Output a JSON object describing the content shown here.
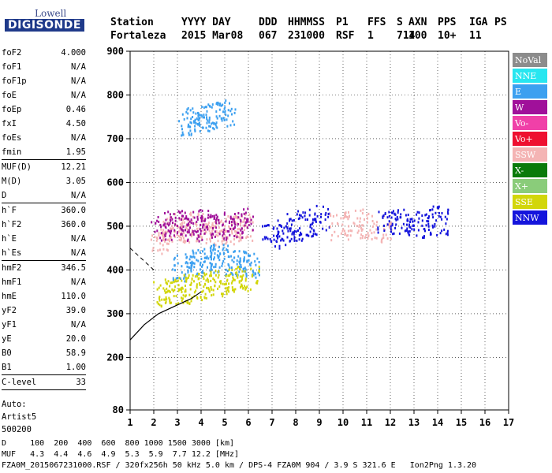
{
  "logo": {
    "line1": "Lowell",
    "line2": "DIGISONDE"
  },
  "header": {
    "labels": [
      "Station",
      "YYYY DAY",
      "DDD",
      "HHMMSS",
      "P1",
      "FFS",
      "S",
      "AXN",
      "PPS",
      "IGA",
      "PS"
    ],
    "values": [
      "Fortaleza",
      "2015 Mar08",
      "067",
      "231000",
      "RSF",
      "1",
      "714",
      "100",
      "10+",
      "11"
    ]
  },
  "parameters": [
    {
      "name": "foF2",
      "value": "4.000"
    },
    {
      "name": "foF1",
      "value": "N/A"
    },
    {
      "name": "foF1p",
      "value": "N/A"
    },
    {
      "name": "foE",
      "value": "N/A"
    },
    {
      "name": "foEp",
      "value": "0.46"
    },
    {
      "name": "fxI",
      "value": "4.50"
    },
    {
      "name": "foEs",
      "value": "N/A"
    },
    {
      "name": "fmin",
      "value": "1.95"
    },
    {
      "sep": true
    },
    {
      "name": "MUF(D)",
      "value": "12.21"
    },
    {
      "name": "M(D)",
      "value": "3.05"
    },
    {
      "name": "D",
      "value": "N/A"
    },
    {
      "sep": true
    },
    {
      "name": "h`F",
      "value": "360.0"
    },
    {
      "name": "h`F2",
      "value": "360.0"
    },
    {
      "name": "h`E",
      "value": "N/A"
    },
    {
      "name": "h`Es",
      "value": "N/A"
    },
    {
      "sep": true
    },
    {
      "name": "hmF2",
      "value": "346.5"
    },
    {
      "name": "hmF1",
      "value": "N/A"
    },
    {
      "name": "hmE",
      "value": "110.0"
    },
    {
      "name": "yF2",
      "value": "39.0"
    },
    {
      "name": "yF1",
      "value": "N/A"
    },
    {
      "name": "yE",
      "value": "20.0"
    },
    {
      "name": "B0",
      "value": "58.9"
    },
    {
      "name": "B1",
      "value": "1.00"
    },
    {
      "sep": true
    },
    {
      "name": "C-level",
      "value": "33"
    },
    {
      "sep": true
    }
  ],
  "autoscaling": [
    "Auto:",
    "Artist5",
    "500200"
  ],
  "legend": [
    {
      "label": "NoVal",
      "color": "#8c8c8c"
    },
    {
      "label": "NNE",
      "color": "#28e6f0"
    },
    {
      "label": "E",
      "color": "#3ca0f0"
    },
    {
      "label": "W",
      "color": "#a0109a"
    },
    {
      "label": "Vo-",
      "color": "#f040a8"
    },
    {
      "label": "Vo+",
      "color": "#ee1030"
    },
    {
      "label": "SSW",
      "color": "#f4b4b4"
    },
    {
      "label": "X-",
      "color": "#0a7a0a"
    },
    {
      "label": "X+",
      "color": "#8acc7a"
    },
    {
      "label": "SSE",
      "color": "#d2d60a"
    },
    {
      "label": "NNW",
      "color": "#1414dc"
    }
  ],
  "footer": {
    "line1": "D     100  200  400  600  800 1000 1500 3000 [km]",
    "line2": "MUF   4.3  4.4  4.6  4.9  5.3  5.9  7.7 12.2 [MHz]",
    "line3": "FZA0M_2015067231000.RSF / 320fx256h 50 kHz 5.0 km / DPS-4 FZA0M 904 / 3.9 S 321.6 E   Ion2Png 1.3.20"
  },
  "chart_data": {
    "type": "scatter",
    "xlim": [
      1,
      17
    ],
    "ylim": [
      80,
      900
    ],
    "xticks": [
      "1",
      "2",
      "3",
      "4",
      "5",
      "6",
      "7",
      "8",
      "9",
      "10",
      "11",
      "12",
      "13",
      "14",
      "15",
      "16",
      "17"
    ],
    "yticks": [
      "80",
      "200",
      "300",
      "400",
      "500",
      "600",
      "700",
      "800",
      "900"
    ],
    "ytick_values": [
      80,
      200,
      300,
      400,
      500,
      600,
      700,
      800,
      900
    ],
    "grid": "dotted",
    "echo_clusters": [
      {
        "color": "#f4b4b4",
        "x": [
          2.2,
          2.6,
          3.0,
          3.4,
          3.8,
          4.2,
          4.6,
          5.0,
          5.4,
          5.8
        ],
        "y": [
          470,
          490,
          500,
          495,
          505,
          500,
          485,
          490,
          495,
          500
        ]
      },
      {
        "color": "#a0109a",
        "x": [
          2.3,
          2.8,
          3.3,
          3.8,
          4.3,
          4.8,
          5.3,
          5.8
        ],
        "y": [
          500,
          510,
          505,
          495,
          510,
          500,
          505,
          515
        ]
      },
      {
        "color": "#3ca0f0",
        "x": [
          3.2,
          3.6,
          4.0,
          4.4,
          4.8,
          5.2,
          5.6,
          6.0
        ],
        "y": [
          405,
          415,
          420,
          425,
          430,
          420,
          415,
          410
        ]
      },
      {
        "color": "#d2d60a",
        "x": [
          2.4,
          2.8,
          3.2,
          3.6,
          4.0,
          4.5,
          5.0,
          5.5,
          6.0
        ],
        "y": [
          345,
          350,
          355,
          360,
          365,
          370,
          375,
          380,
          385
        ]
      },
      {
        "color": "#1414dc",
        "x": [
          7.0,
          7.5,
          8.0,
          8.5,
          9.0
        ],
        "y": [
          480,
          490,
          500,
          510,
          520
        ]
      },
      {
        "color": "#f4b4b4",
        "x": [
          9.8,
          10.4,
          11.0,
          11.6
        ],
        "y": [
          500,
          510,
          505,
          495
        ]
      },
      {
        "color": "#1414dc",
        "x": [
          11.8,
          12.4,
          13.0,
          13.6,
          14.0
        ],
        "y": [
          510,
          515,
          505,
          520,
          510
        ]
      },
      {
        "color": "#3ca0f0",
        "x": [
          3.4,
          3.8,
          4.2,
          4.6,
          5.0
        ],
        "y": [
          740,
          745,
          750,
          755,
          760
        ]
      }
    ],
    "trace_profile": {
      "x": [
        1.0,
        1.6,
        2.2,
        3.0,
        3.6,
        4.0
      ],
      "y": [
        240,
        275,
        300,
        320,
        335,
        350
      ]
    },
    "profile_dash": {
      "x": [
        1.0,
        1.6,
        2.1
      ],
      "y": [
        450,
        420,
        395
      ]
    }
  }
}
